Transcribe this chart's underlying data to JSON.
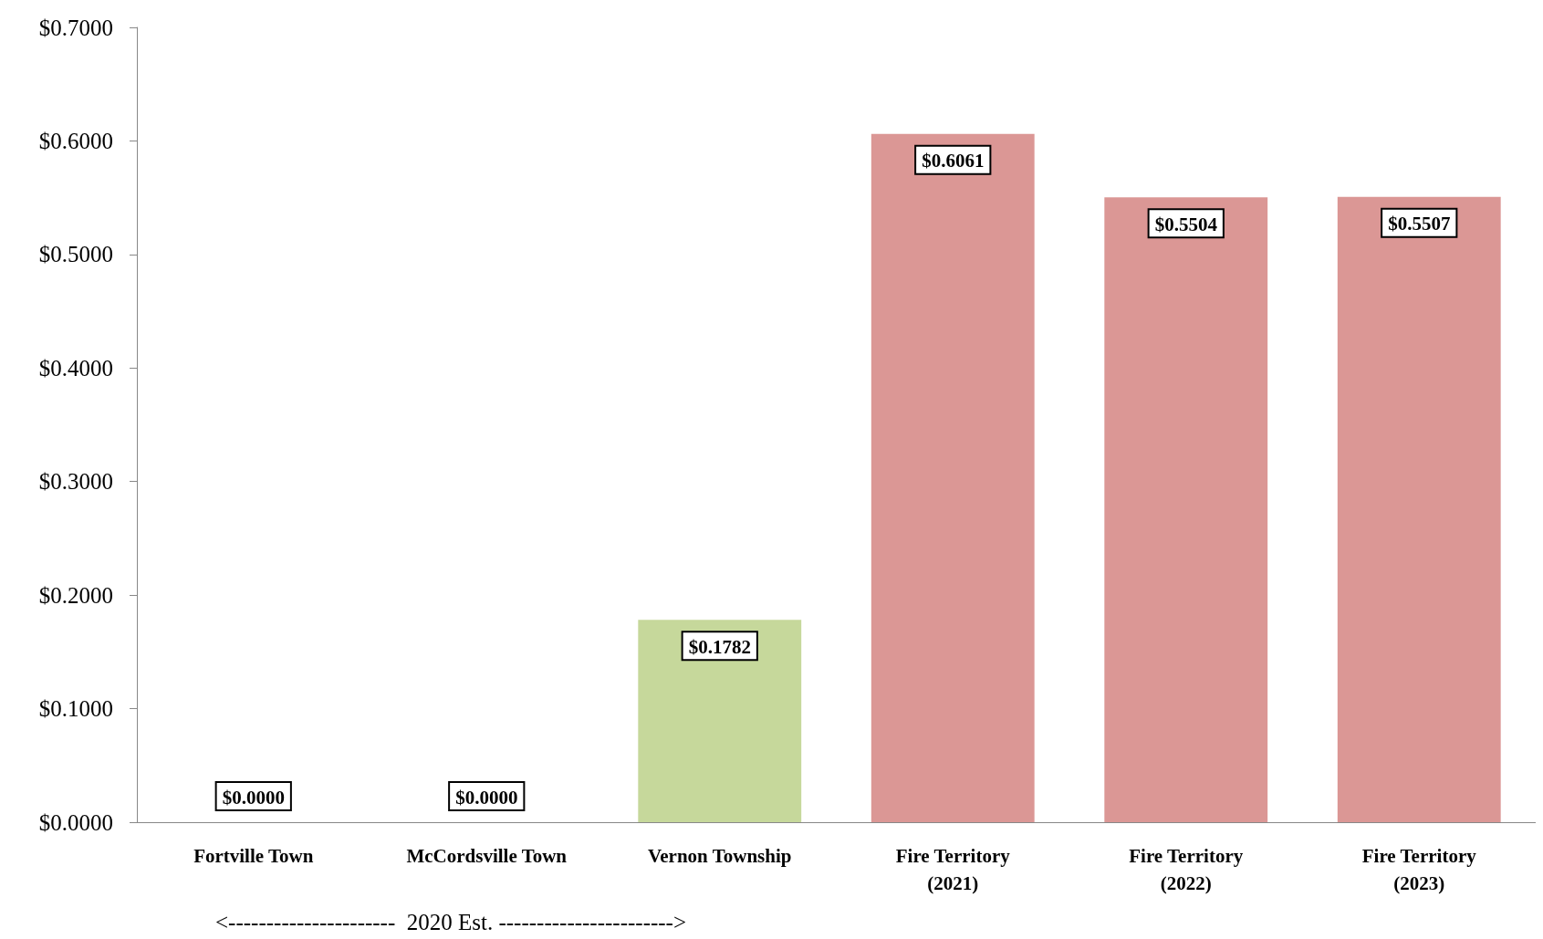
{
  "chart_data": {
    "type": "bar",
    "categories": [
      "Fortville Town",
      "McCordsville Town",
      "Vernon Township",
      "Fire Territory\n(2021)",
      "Fire Territory\n(2022)",
      "Fire Territory\n(2023)"
    ],
    "values": [
      0,
      0,
      0.1782,
      0.6061,
      0.5504,
      0.5507
    ],
    "colors": [
      "#c6d89b",
      "#c6d89b",
      "#c6d89b",
      "#db9795",
      "#db9795",
      "#db9795"
    ],
    "value_labels": [
      "$0.0000",
      "$0.0000",
      "$0.1782",
      "$0.6061",
      "$0.5504",
      "$0.5507"
    ],
    "ylim": [
      0,
      0.7
    ],
    "yticks": [
      {
        "value": 0,
        "label": "$0.0000"
      },
      {
        "value": 0.1,
        "label": "$0.1000"
      },
      {
        "value": 0.2,
        "label": "$0.2000"
      },
      {
        "value": 0.3,
        "label": "$0.3000"
      },
      {
        "value": 0.4,
        "label": "$0.4000"
      },
      {
        "value": 0.5,
        "label": "$0.5000"
      },
      {
        "value": 0.6,
        "label": "$0.6000"
      },
      {
        "value": 0.7,
        "label": "$0.7000"
      }
    ],
    "annotations": [
      "<----------------------  2020 Est. ----------------------->"
    ],
    "grid": false
  }
}
